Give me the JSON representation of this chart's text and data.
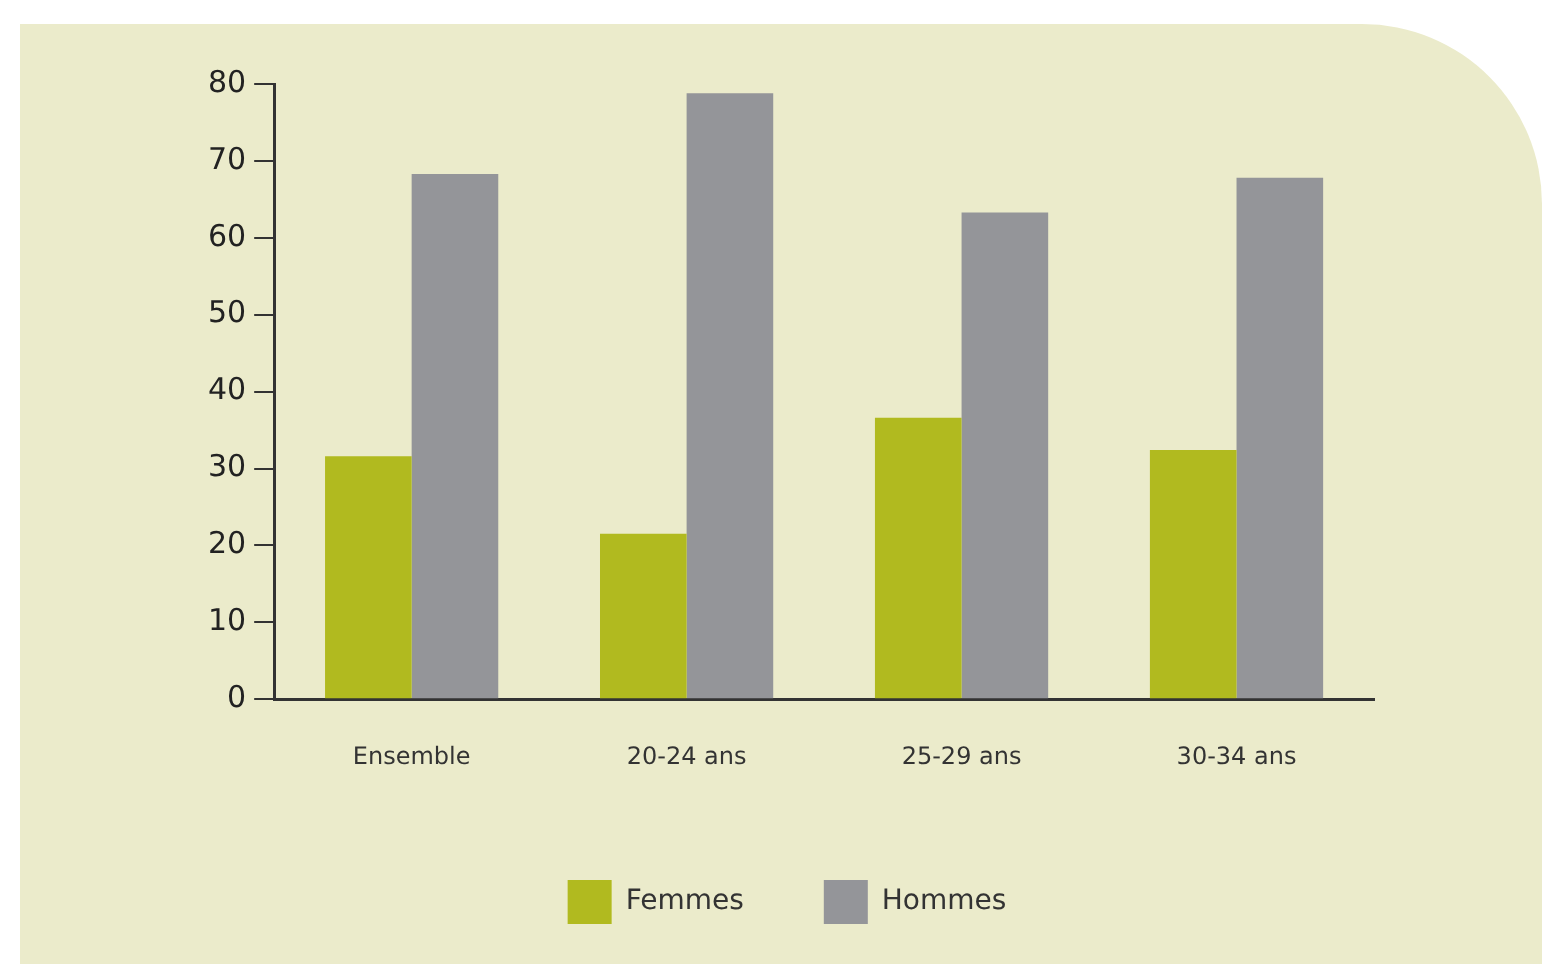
{
  "chart_data": {
    "type": "bar",
    "categories": [
      "Ensemble",
      "20-24 ans",
      "25-29 ans",
      "30-34 ans"
    ],
    "series": [
      {
        "name": "Femmes",
        "color": "#b1ba1f",
        "values": [
          31.6,
          21.5,
          36.6,
          32.4
        ]
      },
      {
        "name": "Hommes",
        "color": "#949599",
        "values": [
          68.3,
          78.8,
          63.3,
          67.8
        ]
      }
    ],
    "ylim": [
      0,
      80
    ],
    "yticks": [
      0,
      10,
      20,
      30,
      40,
      50,
      60,
      70,
      80
    ],
    "grid": false,
    "legend": "bottom"
  }
}
